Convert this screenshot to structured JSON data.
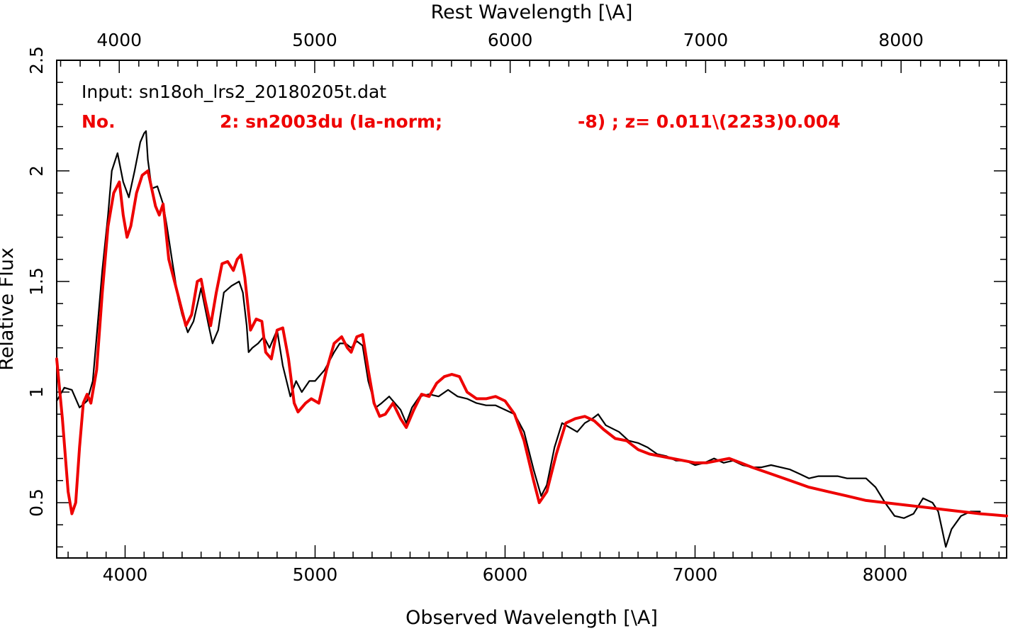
{
  "chart_data": {
    "type": "line",
    "xlabel": "Observed Wavelength [\\A]",
    "xlabel_top": "Rest Wavelength [\\A]",
    "ylabel": "Relative Flux",
    "xlim": [
      3640,
      8640
    ],
    "ylim": [
      0.25,
      2.5
    ],
    "xlim_top": [
      3680,
      8540
    ],
    "x_ticks": [
      "4000",
      "5000",
      "6000",
      "7000",
      "8000"
    ],
    "x_tick_values": [
      4000,
      5000,
      6000,
      7000,
      8000
    ],
    "top_ticks": [
      "4000",
      "5000",
      "6000",
      "7000",
      "8000"
    ],
    "top_tick_values": [
      4000,
      5000,
      6000,
      7000,
      8000
    ],
    "y_ticks": [
      "0.5",
      "1",
      "1.5",
      "2",
      "2.5"
    ],
    "y_tick_values": [
      0.5,
      1.0,
      1.5,
      2.0,
      2.5
    ],
    "grid": false,
    "legend_placement": "top-left",
    "annotations": {
      "input_line": "Input: sn18oh_lrs2_20180205t.dat",
      "model_no": "No.",
      "model_id": "2: sn2003du (Ia-norm;",
      "model_phase": "-8) ; z= 0.011\\(2233)0.004"
    },
    "series": [
      {
        "color": "#000000",
        "x": [
          3640,
          3680,
          3720,
          3760,
          3800,
          3830,
          3850,
          3880,
          3910,
          3930,
          3960,
          3990,
          4020,
          4050,
          4080,
          4100,
          4110,
          4120,
          4140,
          4170,
          4200,
          4220,
          4250,
          4280,
          4300,
          4330,
          4360,
          4400,
          4440,
          4460,
          4490,
          4520,
          4560,
          4600,
          4620,
          4640,
          4650,
          4670,
          4700,
          4730,
          4760,
          4800,
          4830,
          4870,
          4900,
          4930,
          4970,
          5000,
          5050,
          5100,
          5130,
          5160,
          5190,
          5220,
          5250,
          5280,
          5320,
          5350,
          5390,
          5420,
          5450,
          5480,
          5510,
          5550,
          5600,
          5650,
          5700,
          5750,
          5800,
          5850,
          5900,
          5950,
          6000,
          6050,
          6100,
          6150,
          6190,
          6220,
          6260,
          6300,
          6340,
          6380,
          6420,
          6460,
          6490,
          6530,
          6600,
          6650,
          6700,
          6750,
          6800,
          6850,
          6900,
          6950,
          7000,
          7050,
          7100,
          7150,
          7200,
          7250,
          7300,
          7350,
          7400,
          7450,
          7500,
          7550,
          7600,
          7650,
          7700,
          7750,
          7800,
          7850,
          7900,
          7950,
          8000,
          8050,
          8100,
          8150,
          8200,
          8250,
          8280,
          8300,
          8320,
          8350,
          8400,
          8450,
          8500
        ],
        "values": [
          0.96,
          1.02,
          1.01,
          0.93,
          0.96,
          1.05,
          1.25,
          1.55,
          1.8,
          2.0,
          2.08,
          1.95,
          1.88,
          2.0,
          2.13,
          2.17,
          2.18,
          2.05,
          1.92,
          1.93,
          1.85,
          1.75,
          1.58,
          1.42,
          1.35,
          1.27,
          1.32,
          1.47,
          1.3,
          1.22,
          1.28,
          1.45,
          1.48,
          1.5,
          1.45,
          1.3,
          1.18,
          1.2,
          1.22,
          1.25,
          1.2,
          1.28,
          1.12,
          0.98,
          1.05,
          1.0,
          1.05,
          1.05,
          1.1,
          1.18,
          1.22,
          1.22,
          1.2,
          1.23,
          1.21,
          1.05,
          0.93,
          0.95,
          0.98,
          0.95,
          0.92,
          0.86,
          0.93,
          0.98,
          0.99,
          0.98,
          1.01,
          0.98,
          0.97,
          0.95,
          0.94,
          0.94,
          0.92,
          0.9,
          0.82,
          0.65,
          0.53,
          0.58,
          0.75,
          0.86,
          0.84,
          0.82,
          0.86,
          0.88,
          0.9,
          0.85,
          0.82,
          0.78,
          0.77,
          0.75,
          0.72,
          0.71,
          0.69,
          0.69,
          0.67,
          0.68,
          0.7,
          0.68,
          0.69,
          0.67,
          0.66,
          0.66,
          0.67,
          0.66,
          0.65,
          0.63,
          0.61,
          0.62,
          0.62,
          0.62,
          0.61,
          0.61,
          0.61,
          0.57,
          0.5,
          0.44,
          0.43,
          0.45,
          0.52,
          0.5,
          0.46,
          0.38,
          0.3,
          0.38,
          0.44,
          0.46,
          0.46
        ]
      },
      {
        "color": "#ee0000",
        "x": [
          3640,
          3670,
          3700,
          3720,
          3740,
          3760,
          3780,
          3800,
          3820,
          3850,
          3880,
          3910,
          3940,
          3970,
          3990,
          4010,
          4030,
          4060,
          4090,
          4120,
          4140,
          4160,
          4180,
          4200,
          4230,
          4260,
          4290,
          4320,
          4350,
          4380,
          4400,
          4420,
          4450,
          4480,
          4510,
          4540,
          4570,
          4590,
          4610,
          4630,
          4660,
          4690,
          4720,
          4740,
          4770,
          4800,
          4830,
          4860,
          4890,
          4910,
          4950,
          4980,
          5020,
          5060,
          5100,
          5140,
          5170,
          5190,
          5220,
          5250,
          5280,
          5310,
          5340,
          5370,
          5410,
          5450,
          5480,
          5520,
          5560,
          5600,
          5640,
          5680,
          5720,
          5760,
          5800,
          5850,
          5900,
          5950,
          6000,
          6050,
          6100,
          6150,
          6180,
          6220,
          6270,
          6320,
          6370,
          6420,
          6470,
          6520,
          6580,
          6640,
          6700,
          6760,
          6820,
          6880,
          6940,
          7000,
          7060,
          7120,
          7180,
          7240,
          7300,
          7400,
          7500,
          7600,
          7700,
          7800,
          7900,
          8000,
          8100,
          8200,
          8300,
          8400,
          8500,
          8640
        ],
        "values": [
          1.15,
          0.88,
          0.55,
          0.45,
          0.5,
          0.75,
          0.95,
          0.99,
          0.95,
          1.1,
          1.45,
          1.75,
          1.9,
          1.95,
          1.8,
          1.7,
          1.75,
          1.9,
          1.98,
          2.0,
          1.92,
          1.84,
          1.8,
          1.85,
          1.6,
          1.5,
          1.4,
          1.3,
          1.35,
          1.5,
          1.51,
          1.42,
          1.3,
          1.45,
          1.58,
          1.59,
          1.55,
          1.6,
          1.62,
          1.52,
          1.28,
          1.33,
          1.32,
          1.18,
          1.15,
          1.28,
          1.29,
          1.15,
          0.95,
          0.91,
          0.95,
          0.97,
          0.95,
          1.1,
          1.22,
          1.25,
          1.2,
          1.18,
          1.25,
          1.26,
          1.1,
          0.95,
          0.89,
          0.9,
          0.95,
          0.88,
          0.84,
          0.92,
          0.99,
          0.98,
          1.04,
          1.07,
          1.08,
          1.07,
          1.0,
          0.97,
          0.97,
          0.98,
          0.96,
          0.9,
          0.78,
          0.6,
          0.5,
          0.55,
          0.72,
          0.86,
          0.88,
          0.89,
          0.87,
          0.83,
          0.79,
          0.78,
          0.74,
          0.72,
          0.71,
          0.7,
          0.69,
          0.68,
          0.68,
          0.69,
          0.7,
          0.68,
          0.66,
          0.63,
          0.6,
          0.57,
          0.55,
          0.53,
          0.51,
          0.5,
          0.49,
          0.48,
          0.47,
          0.46,
          0.45,
          0.44
        ]
      }
    ]
  }
}
